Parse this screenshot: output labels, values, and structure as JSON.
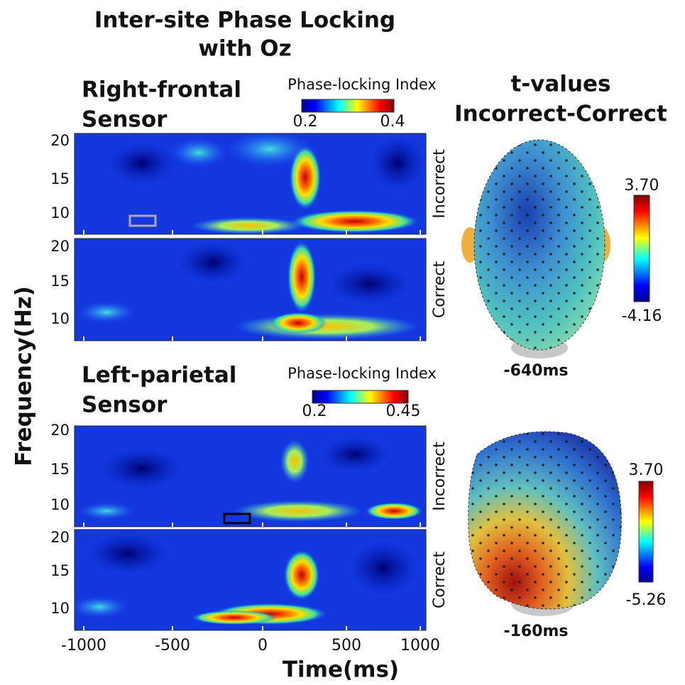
{
  "title": [
    "Inter-site Phase Locking",
    "with Oz"
  ],
  "panels": [
    {
      "heading": [
        "Right-frontal",
        "Sensor"
      ],
      "colorbar": {
        "label": "Phase-locking Index",
        "min": "0.2",
        "max": "0.4"
      },
      "rows": [
        "Incorrect",
        "Correct"
      ]
    },
    {
      "heading": [
        "Left-parietal",
        "Sensor"
      ],
      "colorbar": {
        "label": "Phase-locking Index",
        "min": "0.2",
        "max": "0.45"
      },
      "rows": [
        "Incorrect",
        "Correct"
      ]
    }
  ],
  "y_tick_labels": [
    "20",
    "15",
    "10"
  ],
  "x_tick_labels": [
    "-1000",
    "-500",
    "0",
    "500",
    "1000"
  ],
  "x_axis_label": "Time(ms)",
  "y_axis_label": "Frequency(Hz)",
  "topography": {
    "title": [
      "t-values",
      "Incorrect-Correct"
    ],
    "maps": [
      {
        "max": "3.70",
        "min": "-4.16",
        "time": "-640ms"
      },
      {
        "max": "3.70",
        "min": "-5.26",
        "time": "-160ms"
      }
    ]
  }
}
